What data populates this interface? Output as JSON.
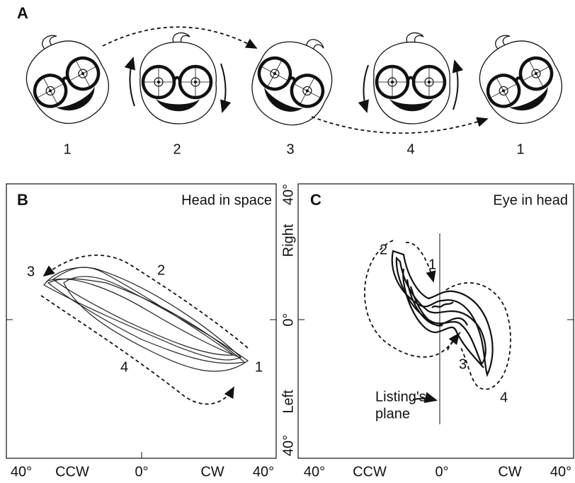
{
  "panel_a": {
    "label": "A",
    "steps": [
      "1",
      "2",
      "3",
      "4",
      "1"
    ]
  },
  "panel_b": {
    "label": "B",
    "title": "Head in space",
    "trace_labels": [
      "3",
      "2",
      "1",
      "4"
    ],
    "x_axis": [
      "40°",
      "CCW",
      "0°",
      "CW",
      "40°"
    ]
  },
  "panel_c": {
    "label": "C",
    "title": "Eye in head",
    "trace_labels": [
      "2",
      "1",
      "3",
      "4"
    ],
    "annotation": [
      "Listing's",
      "plane"
    ],
    "x_axis": [
      "40°",
      "CCW",
      "0°",
      "CW",
      "40°"
    ]
  },
  "y_axis": [
    "40°",
    "Right",
    "0°",
    "Left",
    "40°"
  ]
}
